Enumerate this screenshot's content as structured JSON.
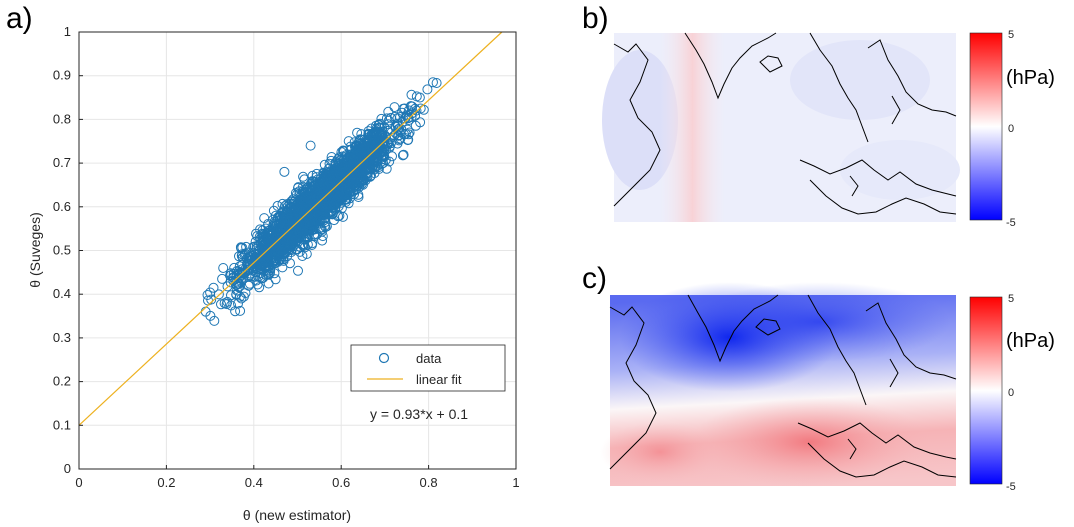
{
  "panels": {
    "a": {
      "label": "a)"
    },
    "b": {
      "label": "b)",
      "colorbar": {
        "unit": "(hPa)",
        "ticks": [
          "5",
          "0",
          "-5"
        ],
        "max": 5,
        "min": -5,
        "mid": 0
      }
    },
    "c": {
      "label": "c)",
      "colorbar": {
        "unit": "(hPa)",
        "ticks": [
          "5",
          "0",
          "-5"
        ],
        "max": 5,
        "min": -5,
        "mid": 0
      }
    }
  },
  "colors": {
    "data": "#1f77b4",
    "fit": "#edb120",
    "cb_high": "#ff0000",
    "cb_mid": "#ffffff",
    "cb_low": "#0000ff"
  },
  "chart_data": [
    {
      "type": "scatter",
      "xlabel": "θ (new estimator)",
      "ylabel": "θ (Suveges)",
      "xlim": [
        0,
        1
      ],
      "ylim": [
        0,
        1
      ],
      "xticks": [
        0,
        0.2,
        0.4,
        0.6,
        0.8,
        1
      ],
      "yticks": [
        0,
        0.1,
        0.2,
        0.3,
        0.4,
        0.5,
        0.6,
        0.7,
        0.8,
        0.9,
        1
      ],
      "xtick_labels": [
        "0",
        "0.2",
        "0.4",
        "0.6",
        "0.8",
        "1"
      ],
      "ytick_labels": [
        "0",
        "0.1",
        "0.2",
        "0.3",
        "0.4",
        "0.5",
        "0.6",
        "0.7",
        "0.8",
        "0.9",
        "1"
      ],
      "grid": true,
      "legend": {
        "placement": "bottom-right",
        "entries": [
          "data",
          "linear fit"
        ]
      },
      "annotation": "y = 0.93*x + 0.1",
      "fit": {
        "slope": 0.93,
        "intercept": 0.1
      },
      "cloud": {
        "x_range": [
          0.29,
          0.82
        ],
        "residual_sd": 0.028
      },
      "outliers": [
        [
          0.29,
          0.36
        ],
        [
          0.81,
          0.885
        ],
        [
          0.78,
          0.85
        ],
        [
          0.76,
          0.83
        ],
        [
          0.33,
          0.46
        ],
        [
          0.53,
          0.74
        ],
        [
          0.47,
          0.68
        ]
      ]
    },
    {
      "type": "heatmap",
      "name": "b",
      "colorbar_range": [
        -5,
        5
      ],
      "colorbar_ticks": [
        5,
        0,
        -5
      ]
    },
    {
      "type": "heatmap",
      "name": "c",
      "colorbar_range": [
        -5,
        5
      ],
      "colorbar_ticks": [
        5,
        0,
        -5
      ]
    }
  ]
}
